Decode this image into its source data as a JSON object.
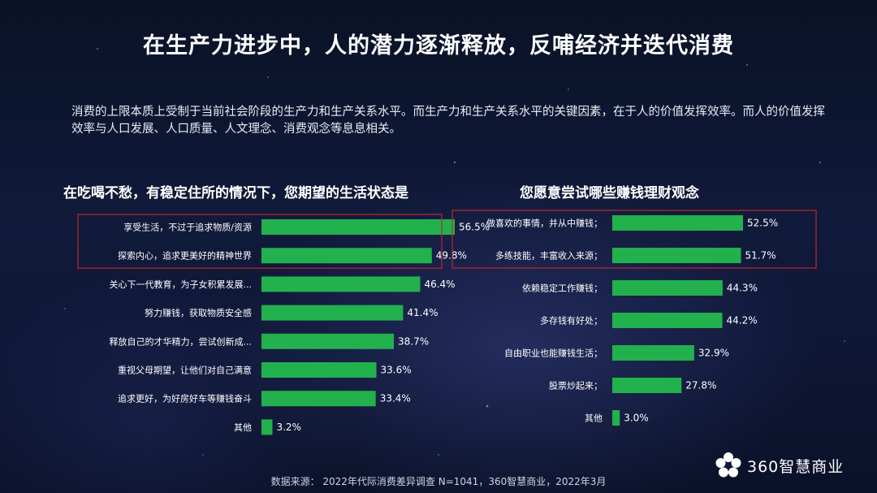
{
  "title": "在生产力进步中，人的潜力逐渐释放，反哺经济并迭代消费",
  "intro": "消费的上限本质上受制于当前社会阶段的生产力和生产关系水平。而生产力和生产关系水平的关键因素，在于人的价值发挥效率。而人的价值发挥效率与人口发展、人口质量、人文理念、消费观念等息息相关。",
  "colors": {
    "bar": "#22b14c",
    "highlight_box": "#c0262d"
  },
  "chart_data": [
    {
      "type": "bar",
      "orientation": "horizontal",
      "title": "在吃喝不愁，有稳定住所的情况下，您期望的生活状态是",
      "categories": [
        "享受生活，不过于追求物质/资源",
        "探索内心，追求更美好的精神世界",
        "关心下一代教育，为子女积累发展...",
        "努力赚钱，获取物质安全感",
        "释放自己的才华精力，尝试创新成...",
        "重视父母期望，让他们对自己满意",
        "追求更好，为好房好车等赚钱奋斗",
        "其他"
      ],
      "values": [
        56.5,
        49.8,
        46.4,
        41.4,
        38.7,
        33.6,
        33.4,
        3.2
      ],
      "value_labels": [
        "56.5%",
        "49.8%",
        "46.4%",
        "41.4%",
        "38.7%",
        "33.6%",
        "33.4%",
        "3.2%"
      ],
      "highlighted": [
        0,
        1
      ]
    },
    {
      "type": "bar",
      "orientation": "horizontal",
      "title": "您愿意尝试哪些赚钱理财观念",
      "categories": [
        "做喜欢的事情，并从中赚钱；",
        "多练技能，丰富收入来源；",
        "依赖稳定工作赚钱；",
        "多存钱有好处；",
        "自由职业也能赚钱生活；",
        "股票炒起来；",
        "其他"
      ],
      "values": [
        52.5,
        51.7,
        44.3,
        44.2,
        32.9,
        27.8,
        3.0
      ],
      "value_labels": [
        "52.5%",
        "51.7%",
        "44.3%",
        "44.2%",
        "32.9%",
        "27.8%",
        "3.0%"
      ],
      "highlighted": [
        0,
        1
      ]
    }
  ],
  "footer": "数据来源： 2022年代际消费差异调查 N=1041，360智慧商业，2022年3月",
  "logo": {
    "text": "360智慧商业",
    "icon": "flower-icon"
  }
}
